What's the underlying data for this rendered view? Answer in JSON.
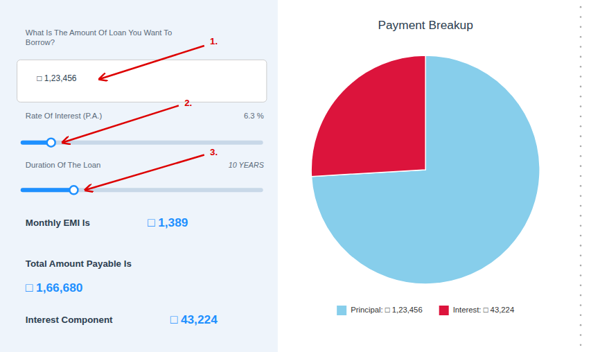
{
  "chart_data": {
    "type": "pie",
    "title": "Payment Breakup",
    "categories": [
      "Principal: □ 1,23,456",
      "Interest: □ 43,224"
    ],
    "values": [
      123456,
      43224
    ],
    "colors": [
      "#87CEEB",
      "#DC143C"
    ],
    "legend": "bottom",
    "annotations": [
      "What Is The Amount Of Loan You Want To\nBorrow?",
      "□ 1,23,456",
      "1.",
      "Rate Of Interest (P.A.)",
      "6.3 %",
      "2.",
      "Duration Of The Loan",
      "10 YEARS",
      "3.",
      "Monthly EMI Is",
      "□ 1,389",
      "Total Amount Payable Is",
      "□ 1,66,680",
      "Interest Component",
      "□ 43,224"
    ]
  }
}
